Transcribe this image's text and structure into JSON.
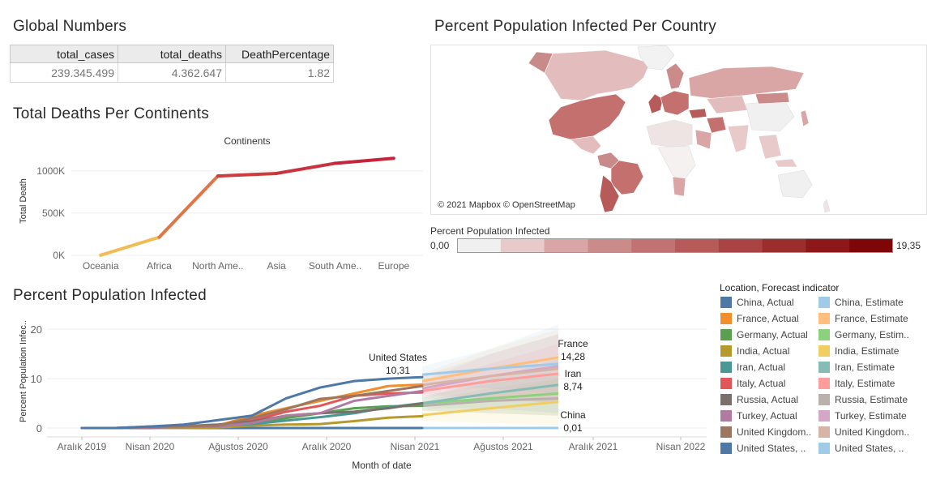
{
  "global_numbers": {
    "title": "Global Numbers",
    "headers": [
      "total_cases",
      "total_deaths",
      "DeathPercentage"
    ],
    "values": [
      "239.345.499",
      "4.362.647",
      "1.82"
    ]
  },
  "map_panel": {
    "title": "Percent Population Infected Per Country",
    "credit": "© 2021 Mapbox © OpenStreetMap",
    "legend_title": "Percent Population Infected",
    "legend_min": "0,00",
    "legend_max": "19,35",
    "scale_colors": [
      "#f0f0f0",
      "#e8caca",
      "#d9a5a5",
      "#cc8b8b",
      "#c17272",
      "#b65a5a",
      "#aa4343",
      "#9c2d2d",
      "#8e1818",
      "#7e0606"
    ]
  },
  "chart_data": [
    {
      "type": "line",
      "title": "Total Deaths Per Continents",
      "subtitle": "Continents",
      "xlabel": "",
      "ylabel": "Total Death",
      "categories": [
        "Oceania",
        "Africa",
        "North Ame..",
        "Asia",
        "South Ame..",
        "Europe"
      ],
      "values": [
        1900,
        215000,
        940000,
        970000,
        1090000,
        1150000
      ],
      "ylim": [
        0,
        1200000
      ],
      "yticks": [
        0,
        500000,
        1000000
      ],
      "ytick_labels": [
        "0K",
        "500K",
        "1000K"
      ],
      "color_range": [
        "#f8cc55",
        "#c4203b"
      ]
    },
    {
      "type": "line",
      "title": "Percent Population Infected",
      "xlabel": "Month of date",
      "ylabel": "Percent Population Infec..",
      "ylim": [
        0,
        22
      ],
      "yticks": [
        0,
        10,
        20
      ],
      "xticks": [
        "Aralık 2019",
        "Nisan 2020",
        "Ağustos 2020",
        "Aralık 2020",
        "Nisan 2021",
        "Ağustos 2021",
        "Aralık 2021",
        "Nisan 2022"
      ],
      "x_actual": [
        "2019-12",
        "2020-02",
        "2020-04",
        "2020-06",
        "2020-08",
        "2020-10",
        "2020-12",
        "2021-02",
        "2021-04",
        "2021-06",
        "2021-08"
      ],
      "x_forecast": [
        "2021-08",
        "2021-12",
        "2022-04"
      ],
      "series": [
        {
          "name": "China, Actual",
          "color": "#4e79a7",
          "values": [
            0,
            0,
            0,
            0,
            0,
            0,
            0,
            0,
            0,
            0,
            0.01
          ]
        },
        {
          "name": "France, Actual",
          "color": "#f28e2b",
          "values": [
            0,
            0,
            0.2,
            0.3,
            0.5,
            2.5,
            4,
            5.5,
            7,
            8.5,
            8.8
          ]
        },
        {
          "name": "Germany, Actual",
          "color": "#59a14f",
          "values": [
            0,
            0,
            0.2,
            0.2,
            0.3,
            0.8,
            2,
            3,
            4,
            4.4,
            4.5
          ]
        },
        {
          "name": "India, Actual",
          "color": "#b6992d",
          "values": [
            0,
            0,
            0,
            0,
            0.1,
            0.5,
            0.7,
            0.8,
            1.4,
            2.1,
            2.4
          ]
        },
        {
          "name": "Iran, Actual",
          "color": "#499894",
          "values": [
            0,
            0,
            0.1,
            0.2,
            0.4,
            0.8,
            1.5,
            2.2,
            3,
            4.2,
            5
          ]
        },
        {
          "name": "Italy, Actual",
          "color": "#e15759",
          "values": [
            0,
            0,
            0.3,
            0.4,
            0.5,
            1.5,
            3.3,
            4.5,
            6.5,
            7,
            7.2
          ]
        },
        {
          "name": "Russia, Actual",
          "color": "#79706e",
          "values": [
            0,
            0,
            0,
            0.4,
            0.7,
            1.3,
            2.5,
            3,
            3.3,
            4,
            5
          ]
        },
        {
          "name": "Turkey, Actual",
          "color": "#b07aa1",
          "values": [
            0,
            0,
            0.1,
            0.2,
            0.3,
            1.0,
            2.5,
            3,
            5.5,
            6.5,
            7.5
          ]
        },
        {
          "name": "United Kingdom, Actual",
          "color": "#9d7660",
          "values": [
            0,
            0,
            0.2,
            0.4,
            0.5,
            2,
            3.8,
            5.9,
            6.5,
            7.5,
            8.5
          ]
        },
        {
          "name": "United States, Actual",
          "color": "#4e79a7",
          "values": [
            0,
            0,
            0.3,
            0.7,
            1.6,
            2.5,
            6,
            8.2,
            9.5,
            10,
            10.31
          ]
        }
      ],
      "forecast_series": [
        {
          "name": "China, Estimate",
          "color": "#a0cbe8",
          "values": [
            0.01,
            0.01,
            0.01
          ],
          "band": [
            [
              0,
              0.1
            ],
            [
              0,
              0.2
            ],
            [
              0,
              0.3
            ]
          ]
        },
        {
          "name": "France, Estimate",
          "color": "#ffbe7d",
          "values": [
            9.5,
            12,
            14.28
          ],
          "band": [
            [
              8,
              11
            ],
            [
              8,
              16
            ],
            [
              7,
              20
            ]
          ]
        },
        {
          "name": "Germany, Estimate",
          "color": "#8cd17d",
          "values": [
            5,
            6,
            7
          ],
          "band": [
            [
              3.5,
              6.5
            ],
            [
              3,
              9
            ],
            [
              2.5,
              11
            ]
          ]
        },
        {
          "name": "India, Estimate",
          "color": "#f1ce63",
          "values": [
            2.6,
            4,
            5.3
          ],
          "band": [
            [
              1.5,
              3.7
            ],
            [
              1,
              7
            ],
            [
              0.5,
              10
            ]
          ]
        },
        {
          "name": "Iran, Estimate",
          "color": "#86bcb6",
          "values": [
            5,
            7,
            8.74
          ],
          "band": [
            [
              4,
              6
            ],
            [
              4,
              10
            ],
            [
              3,
              14
            ]
          ]
        },
        {
          "name": "Italy, Estimate",
          "color": "#ff9d9a",
          "values": [
            7.5,
            9.5,
            11
          ],
          "band": [
            [
              6,
              9
            ],
            [
              6,
              13
            ],
            [
              5,
              17
            ]
          ]
        },
        {
          "name": "Russia, Estimate",
          "color": "#bab0ac",
          "values": [
            4.5,
            5.5,
            6
          ],
          "band": [
            [
              3.5,
              5.5
            ],
            [
              3,
              8
            ],
            [
              2.5,
              10
            ]
          ]
        },
        {
          "name": "Turkey, Estimate",
          "color": "#d4a6c8",
          "values": [
            8,
            10.5,
            12.5
          ],
          "band": [
            [
              6.5,
              9.5
            ],
            [
              6,
              15
            ],
            [
              5,
              19
            ]
          ]
        },
        {
          "name": "United Kingdom, Estimate",
          "color": "#d7b5a6",
          "values": [
            8.7,
            10.5,
            12
          ],
          "band": [
            [
              7,
              10.5
            ],
            [
              6,
              15
            ],
            [
              5,
              19
            ]
          ]
        },
        {
          "name": "United States, Estimate",
          "color": "#a0cbe8",
          "values": [
            10.8,
            12,
            13
          ],
          "band": [
            [
              9,
              12.5
            ],
            [
              8,
              16
            ],
            [
              7,
              21
            ]
          ]
        }
      ],
      "annotations": [
        {
          "name": "United States",
          "value": "10,31"
        },
        {
          "name": "France",
          "value": "14,28"
        },
        {
          "name": "Iran",
          "value": "8,74"
        },
        {
          "name": "China",
          "value": "0,01"
        }
      ],
      "legend_title": "Location, Forecast indicator",
      "legend": [
        {
          "label": "China, Actual",
          "color": "#4e79a7"
        },
        {
          "label": "China, Estimate",
          "color": "#a0cbe8"
        },
        {
          "label": "France, Actual",
          "color": "#f28e2b"
        },
        {
          "label": "France, Estimate",
          "color": "#ffbe7d"
        },
        {
          "label": "Germany, Actual",
          "color": "#59a14f"
        },
        {
          "label": "Germany, Estim..",
          "color": "#8cd17d"
        },
        {
          "label": "India, Actual",
          "color": "#b6992d"
        },
        {
          "label": "India, Estimate",
          "color": "#f1ce63"
        },
        {
          "label": "Iran, Actual",
          "color": "#499894"
        },
        {
          "label": "Iran, Estimate",
          "color": "#86bcb6"
        },
        {
          "label": "Italy, Actual",
          "color": "#e15759"
        },
        {
          "label": "Italy, Estimate",
          "color": "#ff9d9a"
        },
        {
          "label": "Russia, Actual",
          "color": "#79706e"
        },
        {
          "label": "Russia, Estimate",
          "color": "#bab0ac"
        },
        {
          "label": "Turkey, Actual",
          "color": "#b07aa1"
        },
        {
          "label": "Turkey, Estimate",
          "color": "#d4a6c8"
        },
        {
          "label": "United Kingdom..",
          "color": "#9d7660"
        },
        {
          "label": "United Kingdom..",
          "color": "#d7b5a6"
        },
        {
          "label": "United States, ..",
          "color": "#4e79a7"
        },
        {
          "label": "United States, ..",
          "color": "#a0cbe8"
        }
      ]
    }
  ]
}
